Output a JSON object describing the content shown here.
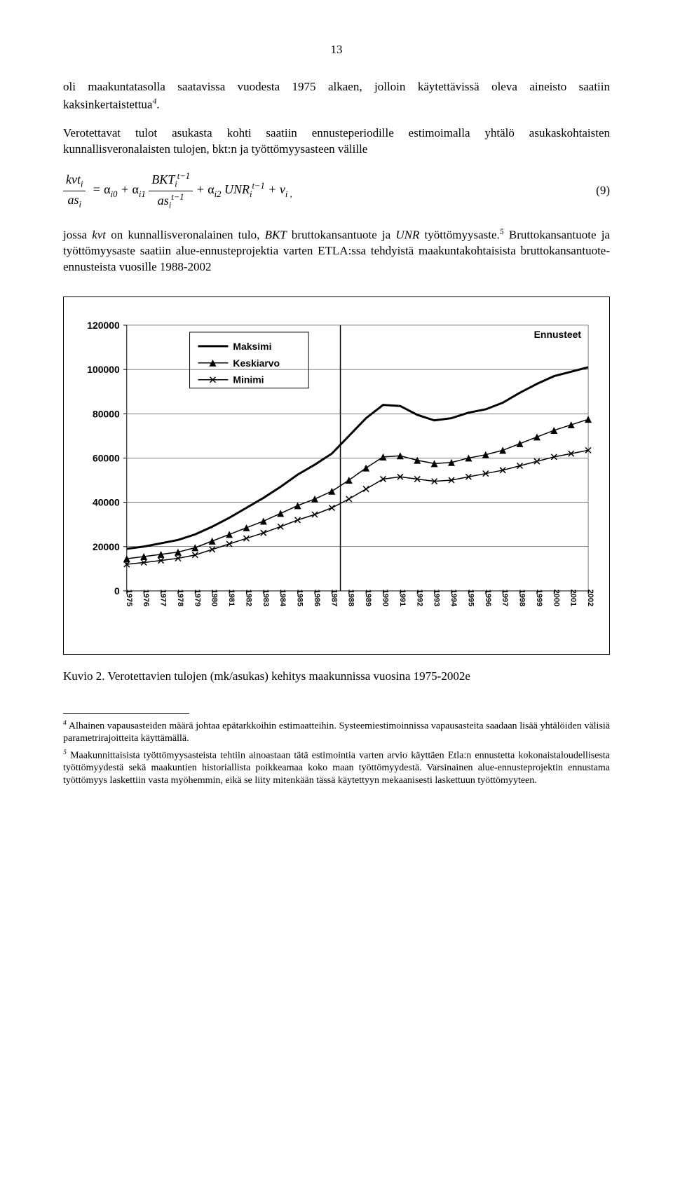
{
  "page_number": "13",
  "para1": "oli maakuntatasolla saatavissa vuodesta 1975 alkaen, jolloin käytettävissä oleva aineisto saatiin kaksinkertaistettua",
  "fn4_ref": "4",
  "para1_end": ".",
  "para2": "Verotettavat tulot asukasta kohti saatiin ennusteperiodille estimoimalla yhtälö asukaskohtaisten kunnallisveronalaisten tulojen, bkt:n ja työttömyysasteen välille",
  "equation_number": "(9)",
  "para3a": "jossa ",
  "para3_kvt": "kvt",
  "para3b": " on kunnallisveronalainen tulo, ",
  "para3_bkt": "BKT",
  "para3c": " bruttokansantuote ja ",
  "para3_unr": "UNR",
  "para3d": " työttömyysaste.",
  "fn5_ref": "5",
  "para3e": " Bruttokansantuote ja työttömyysaste saatiin alue-ennusteprojektia varten ETLA:ssa tehdyistä maakuntakohtaisista bruttokansantuote-ennusteista vuosille 1988-2002",
  "caption": "Kuvio 2. Verotettavien tulojen (mk/asukas) kehitys maakunnissa vuosina 1975-2002e",
  "footnote4_marker": "4",
  "footnote4": " Alhainen vapausasteiden määrä johtaa epätarkkoihin estimaatteihin. Systeemiestimoinnissa vapausasteita saadaan lisää yhtälöiden välisiä parametrirajoitteita käyttämällä.",
  "footnote5_marker": "5",
  "footnote5": " Maakunnittaisista työttömyysasteista tehtiin ainoastaan tätä estimointia varten arvio käyttäen Etla:n ennustetta kokonaistaloudellisesta työttömyydestä sekä maakuntien historiallista poikkeamaa koko maan työttömyydestä. Varsinainen alue-ennusteprojektin ennustama työttömyys laskettiin vasta myöhemmin, eikä se liity mitenkään tässä käytettyyn mekaanisesti laskettuun työttömyyteen.",
  "chart": {
    "type": "line",
    "background_color": "#ffffff",
    "border_color": "#000000",
    "ylim": [
      0,
      120000
    ],
    "ytick_step": 20000,
    "ytick_labels": [
      "0",
      "20000",
      "40000",
      "60000",
      "80000",
      "100000",
      "120000"
    ],
    "years": [
      1975,
      1976,
      1977,
      1978,
      1979,
      1980,
      1981,
      1982,
      1983,
      1984,
      1985,
      1986,
      1987,
      1988,
      1989,
      1990,
      1991,
      1992,
      1993,
      1994,
      1995,
      1996,
      1997,
      1998,
      1999,
      2000,
      2001,
      2002
    ],
    "forecast_start_year": 1988,
    "annotation": "Ennusteet",
    "legend_items": [
      "Maksimi",
      "Keskiarvo",
      "Minimi"
    ],
    "series": {
      "Maksimi": {
        "type": "line",
        "line_width": 3,
        "color": "#000000",
        "marker": null,
        "values": [
          19000,
          20000,
          21500,
          23000,
          25500,
          29000,
          33000,
          37500,
          42000,
          47000,
          52500,
          57000,
          62000,
          70000,
          78000,
          84000,
          83500,
          79500,
          77000,
          78000,
          80500,
          82000,
          85000,
          89500,
          93500,
          97000,
          99000,
          101000
        ]
      },
      "Keskiarvo": {
        "type": "line-marker",
        "line_width": 1.5,
        "color": "#000000",
        "marker": "triangle",
        "marker_size": 5,
        "values": [
          14500,
          15500,
          16500,
          17500,
          19500,
          22500,
          25500,
          28500,
          31500,
          35000,
          38500,
          41500,
          45000,
          50000,
          55500,
          60500,
          61000,
          59000,
          57500,
          58000,
          60000,
          61500,
          63500,
          66500,
          69500,
          72500,
          75000,
          77500
        ]
      },
      "Minimi": {
        "type": "line-marker",
        "line_width": 1.5,
        "color": "#000000",
        "marker": "x",
        "marker_size": 5,
        "values": [
          12000,
          12800,
          13700,
          14700,
          16200,
          18700,
          21200,
          23700,
          26200,
          29000,
          32000,
          34500,
          37500,
          41500,
          46000,
          50500,
          51500,
          50500,
          49500,
          50000,
          51500,
          53000,
          54500,
          56500,
          58500,
          60500,
          62000,
          63500
        ]
      }
    },
    "y_label_fontsize": 14,
    "x_label_fontsize": 11,
    "font_family": "Arial",
    "font_weight": "bold"
  }
}
